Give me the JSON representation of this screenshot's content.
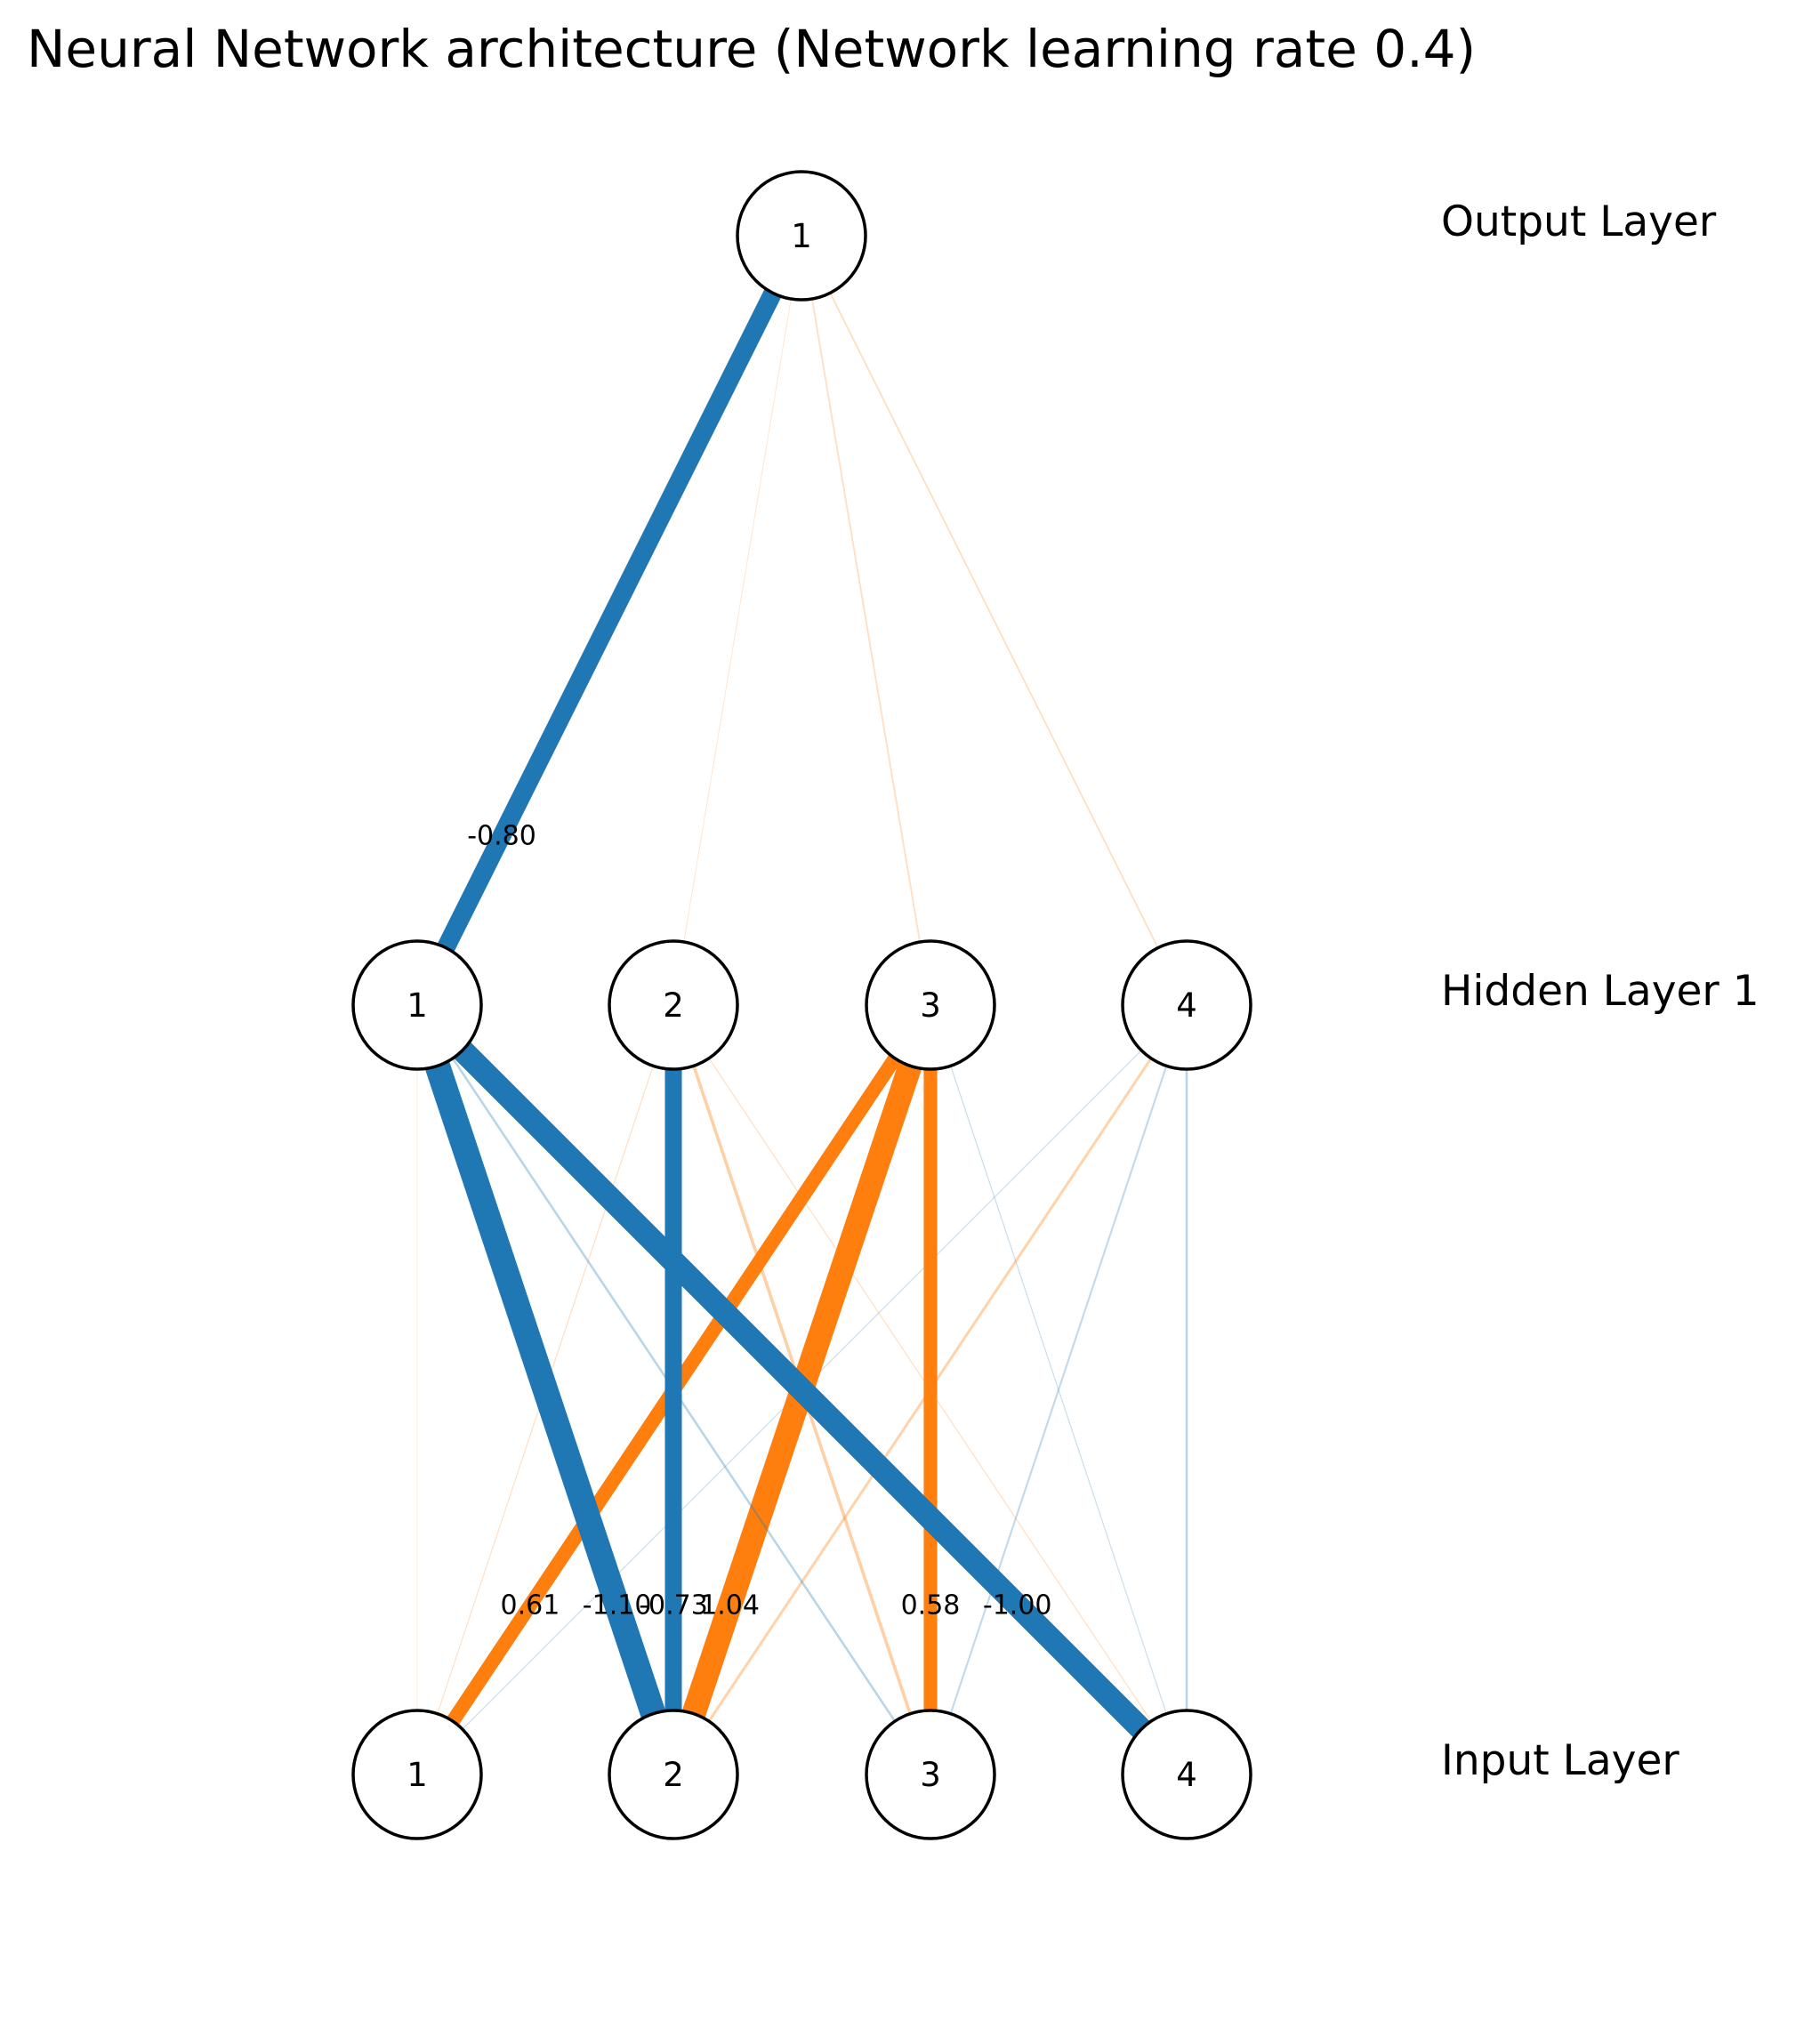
{
  "title": "Neural Network architecture (Network learning rate 0.4)",
  "layers": [
    {
      "id": "input",
      "label": "Input Layer",
      "nodes": [
        "1",
        "2",
        "3",
        "4"
      ]
    },
    {
      "id": "hidden1",
      "label": "Hidden Layer 1",
      "nodes": [
        "1",
        "2",
        "3",
        "4"
      ]
    },
    {
      "id": "output",
      "label": "Output Layer",
      "nodes": [
        "1"
      ]
    }
  ],
  "colors": {
    "negative": "#1f77b4",
    "positive": "#ff7f0e",
    "node_fill": "#ffffff",
    "node_stroke": "#000000"
  },
  "connections": [
    {
      "from_layer": "input",
      "from": 1,
      "to_layer": "hidden1",
      "to": 1,
      "weight": 0.01
    },
    {
      "from_layer": "input",
      "from": 1,
      "to_layer": "hidden1",
      "to": 2,
      "weight": 0.05
    },
    {
      "from_layer": "input",
      "from": 1,
      "to_layer": "hidden1",
      "to": 3,
      "weight": 0.61,
      "label": "0.61"
    },
    {
      "from_layer": "input",
      "from": 1,
      "to_layer": "hidden1",
      "to": 4,
      "weight": -0.05
    },
    {
      "from_layer": "input",
      "from": 2,
      "to_layer": "hidden1",
      "to": 1,
      "weight": -1.1,
      "label": "-1.10"
    },
    {
      "from_layer": "input",
      "from": 2,
      "to_layer": "hidden1",
      "to": 2,
      "weight": -0.73,
      "label": "-0.73"
    },
    {
      "from_layer": "input",
      "from": 2,
      "to_layer": "hidden1",
      "to": 3,
      "weight": 1.04,
      "label": "1.04"
    },
    {
      "from_layer": "input",
      "from": 2,
      "to_layer": "hidden1",
      "to": 4,
      "weight": 0.12
    },
    {
      "from_layer": "input",
      "from": 3,
      "to_layer": "hidden1",
      "to": 1,
      "weight": -0.1
    },
    {
      "from_layer": "input",
      "from": 3,
      "to_layer": "hidden1",
      "to": 2,
      "weight": 0.14
    },
    {
      "from_layer": "input",
      "from": 3,
      "to_layer": "hidden1",
      "to": 3,
      "weight": 0.58,
      "label": "0.58"
    },
    {
      "from_layer": "input",
      "from": 3,
      "to_layer": "hidden1",
      "to": 4,
      "weight": -0.08
    },
    {
      "from_layer": "input",
      "from": 4,
      "to_layer": "hidden1",
      "to": 1,
      "weight": -1.0,
      "label": "-1.00"
    },
    {
      "from_layer": "input",
      "from": 4,
      "to_layer": "hidden1",
      "to": 2,
      "weight": 0.05
    },
    {
      "from_layer": "input",
      "from": 4,
      "to_layer": "hidden1",
      "to": 3,
      "weight": -0.05
    },
    {
      "from_layer": "input",
      "from": 4,
      "to_layer": "hidden1",
      "to": 4,
      "weight": -0.1
    },
    {
      "from_layer": "hidden1",
      "from": 1,
      "to_layer": "output",
      "to": 1,
      "weight": -0.8,
      "label": "-0.80"
    },
    {
      "from_layer": "hidden1",
      "from": 2,
      "to_layer": "output",
      "to": 1,
      "weight": 0.03
    },
    {
      "from_layer": "hidden1",
      "from": 3,
      "to_layer": "output",
      "to": 1,
      "weight": 0.07
    },
    {
      "from_layer": "hidden1",
      "from": 4,
      "to_layer": "output",
      "to": 1,
      "weight": 0.07
    }
  ]
}
